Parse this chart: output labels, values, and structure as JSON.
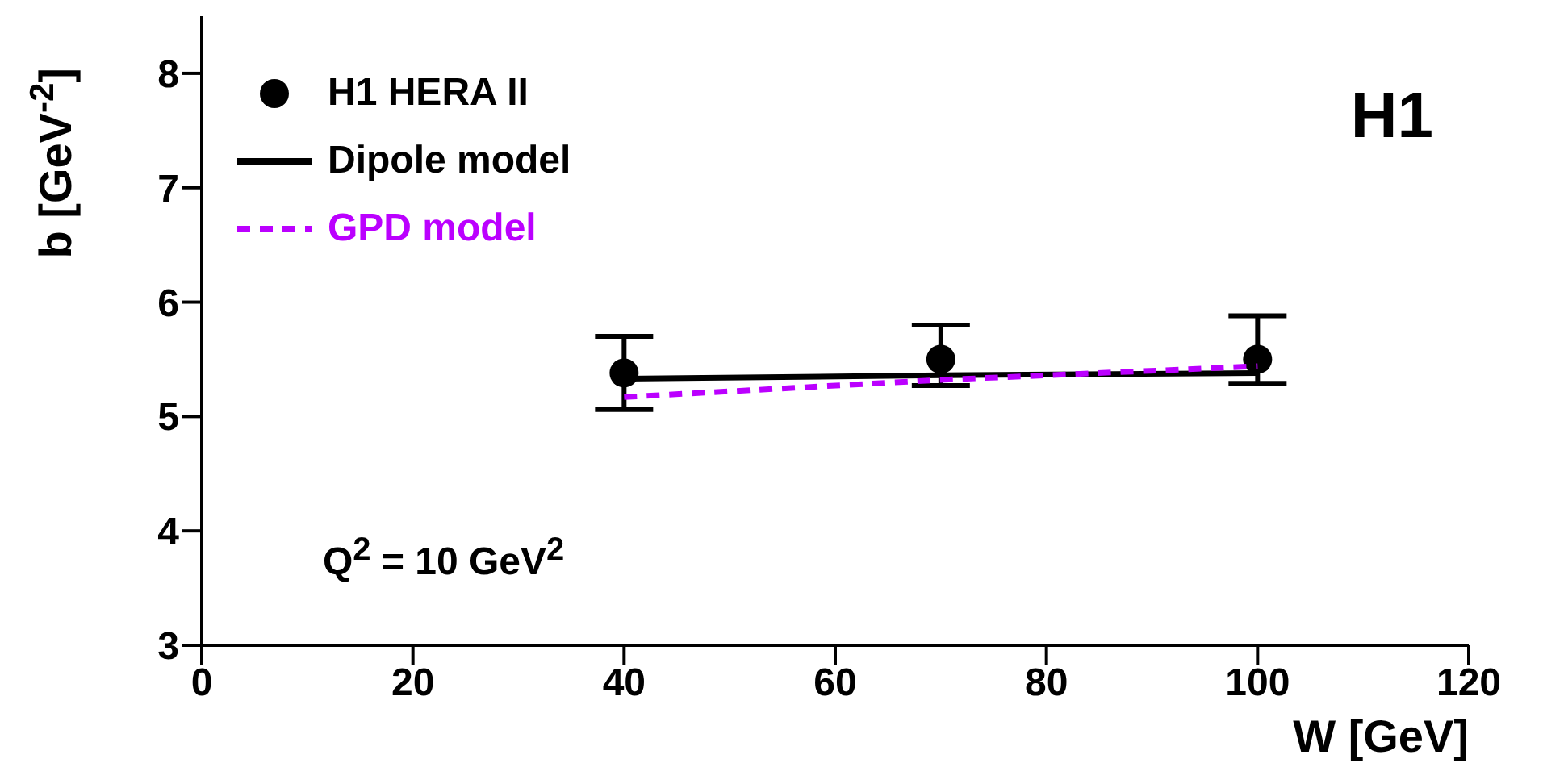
{
  "chart_data": {
    "type": "scatter",
    "xlabel": "W [GeV]",
    "ylabel": "b [GeV$^{-2}$]",
    "xlim": [
      0,
      120
    ],
    "xticks": [
      0,
      20,
      40,
      60,
      80,
      100,
      120
    ],
    "ylim": [
      3,
      8.5
    ],
    "yticks": [
      3,
      4,
      5,
      6,
      7,
      8
    ],
    "legend": "top left",
    "series": [
      {
        "name": "H1 HERA II",
        "marker": "circle",
        "color": "#000000",
        "x": [
          40,
          70,
          100
        ],
        "values": [
          5.38,
          5.5,
          5.5
        ],
        "errors": [
          [
            5.06,
            5.7
          ],
          [
            5.27,
            5.8
          ],
          [
            5.29,
            5.88
          ]
        ]
      },
      {
        "name": "Dipole model",
        "type": "line",
        "line_style": "solid",
        "color": "#000000",
        "x": [
          40,
          70,
          100
        ],
        "values": [
          5.33,
          5.36,
          5.38
        ]
      },
      {
        "name": "GPD model",
        "type": "line",
        "line_style": "dashed",
        "color": "#bb00ff",
        "x": [
          40,
          70,
          100
        ],
        "values": [
          5.17,
          5.32,
          5.44
        ]
      }
    ],
    "annotations": [
      "H1",
      "Q$^{2}$ = 10 GeV$^{2}$"
    ]
  }
}
